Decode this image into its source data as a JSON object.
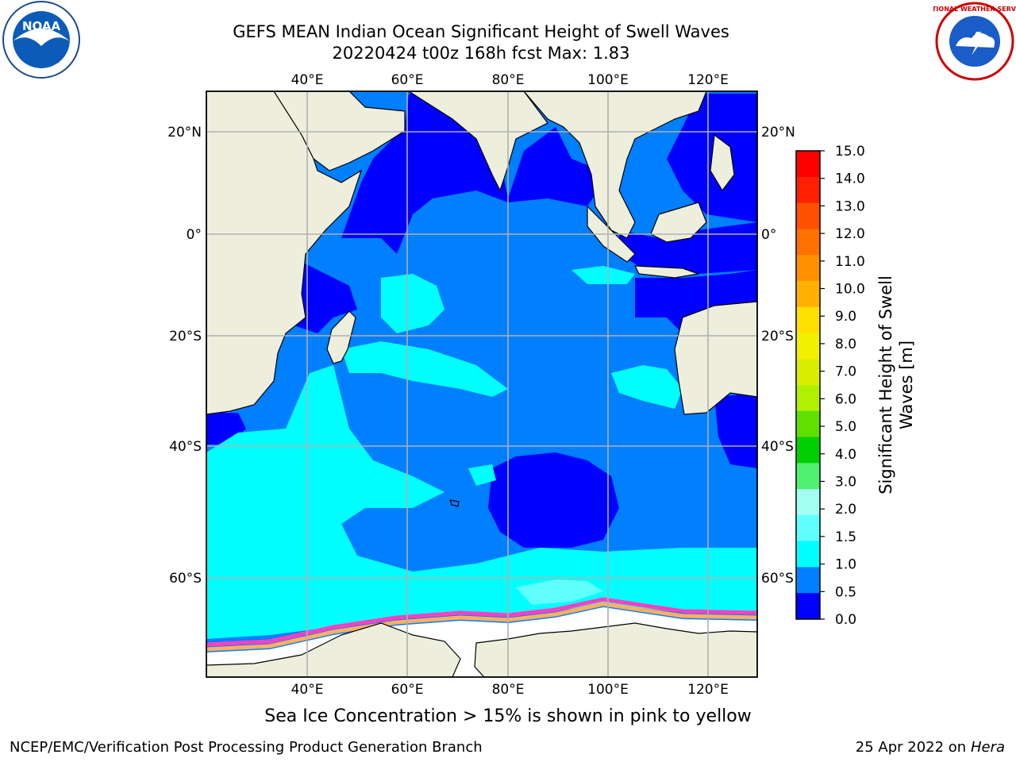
{
  "header": {
    "title_line1": "GEFS MEAN Indian Ocean Significant Height of Swell Waves",
    "title_line2": "20220424 t00z 168h fcst   Max: 1.83"
  },
  "logos": {
    "left": {
      "name": "noaa-logo",
      "text": "NOAA"
    },
    "right": {
      "name": "nws-logo",
      "text": "NATIONAL WEATHER SERVICE"
    }
  },
  "map": {
    "lon_labels": [
      "40°E",
      "60°E",
      "80°E",
      "100°E",
      "120°E"
    ],
    "lat_labels_left": [
      "20°N",
      "0°",
      "20°S",
      "40°S",
      "60°S"
    ],
    "lat_labels_right": [
      "20°N",
      "0°",
      "20°S",
      "40°S",
      "60°S"
    ],
    "colors": {
      "land": "#eeeedd",
      "ice": "#ffffff",
      "grid": "#b0b0b0"
    }
  },
  "colorbar": {
    "label": "Significant Height of Swell Waves [m]",
    "ticks": [
      "15.0",
      "14.0",
      "13.0",
      "12.0",
      "11.0",
      "10.0",
      "9.0",
      "8.0",
      "7.0",
      "6.0",
      "5.0",
      "4.0",
      "3.0",
      "2.0",
      "1.5",
      "1.0",
      "0.5",
      "0.0"
    ],
    "colors_top_to_bottom": [
      "#ff0000",
      "#ff2000",
      "#ff5000",
      "#ff7000",
      "#ff9000",
      "#ffb000",
      "#ffe000",
      "#f0f000",
      "#d8f000",
      "#b0f000",
      "#60e000",
      "#00d000",
      "#50f070",
      "#a0fff0",
      "#60ffff",
      "#00ffff",
      "#007fff",
      "#0000ff"
    ]
  },
  "caption": "Sea Ice Concentration > 15% is shown in pink to yellow",
  "footer": {
    "left": "NCEP/EMC/Verification Post Processing Product Generation Branch",
    "right_prefix": "25 Apr 2022 on ",
    "right_host": "Hera"
  }
}
